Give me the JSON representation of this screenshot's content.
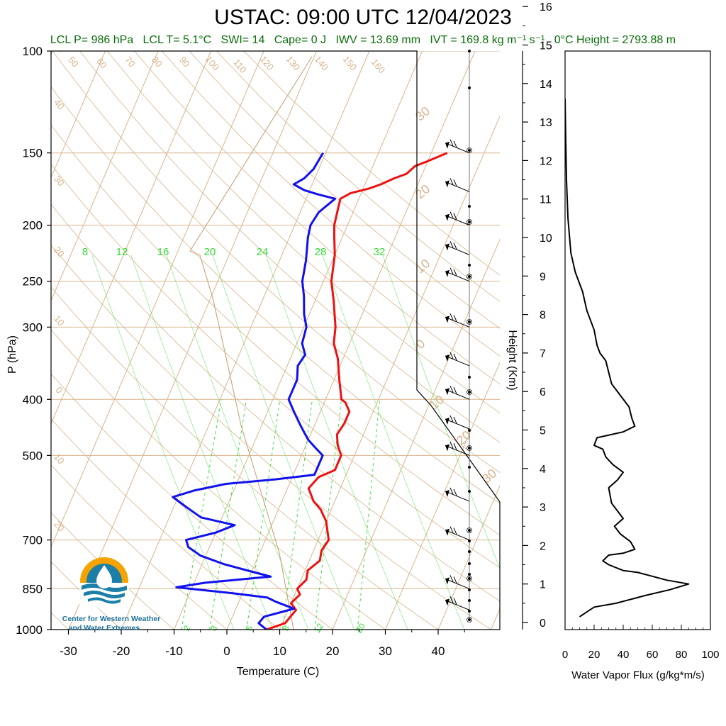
{
  "title": "USTAC: 09:00 UTC 12/04/2023",
  "stats": {
    "lcl_p": "LCL P= 986 hPa",
    "lcl_t": "LCL T= 5.1°C",
    "swi": "SWI= 14",
    "cape": "Cape= 0 J",
    "iwv": "IWV = 13.69 mm",
    "ivt": "IVT = 169.8 kg m⁻¹ s⁻¹",
    "zero_height": "0°C Height = 2793.88 m"
  },
  "logo": {
    "line1": "Center for Western Weather",
    "line2": "and Water Extremes"
  },
  "colors": {
    "temperature": "#ee1111",
    "dewpoint": "#1111ee",
    "isotherm_skewT": "#d8b48c",
    "mixing_ratio": "#33dd33",
    "flux": "#000000"
  },
  "chart_data": [
    {
      "type": "line",
      "subtype": "skew-T log-P diagram",
      "xlabel": "Temperature (C)",
      "ylabel": "P (hPa)",
      "xlim": [
        -35,
        50
      ],
      "ylim": [
        1000,
        100
      ],
      "xticks": [
        -30,
        -20,
        -10,
        0,
        10,
        20,
        30,
        40
      ],
      "yticks": [
        100,
        150,
        200,
        250,
        300,
        400,
        500,
        700,
        850,
        1000
      ],
      "y_scale": "log",
      "grid": true,
      "isotherm_labels": [
        "50",
        "60",
        "70",
        "80",
        "90",
        "100",
        "110",
        "120",
        "130",
        "140",
        "150",
        "160",
        "40",
        "30",
        "20",
        "10",
        "0",
        "10",
        "20"
      ],
      "mixing_ratio_labels_top": [
        "8",
        "12",
        "16",
        "20",
        "24",
        "28",
        "32"
      ],
      "mixing_ratio_labels_bottom": [
        "2",
        "3",
        "5",
        "8",
        "12",
        "20"
      ],
      "moist_adiabat_labels": [
        "30",
        "20",
        "10",
        "0",
        "10",
        "20",
        "30"
      ],
      "series": [
        {
          "kind": "temperature",
          "points": [
            [
              7.5,
              1000
            ],
            [
              10.5,
              975
            ],
            [
              11,
              950
            ],
            [
              11.5,
              925
            ],
            [
              10,
              900
            ],
            [
              11,
              870
            ],
            [
              10,
              850
            ],
            [
              11,
              820
            ],
            [
              10.5,
              790
            ],
            [
              12,
              760
            ],
            [
              11.5,
              730
            ],
            [
              12,
              700
            ],
            [
              10,
              650
            ],
            [
              8,
              620
            ],
            [
              6,
              600
            ],
            [
              4,
              570
            ],
            [
              5,
              545
            ],
            [
              7.5,
              530
            ],
            [
              7.5,
              500
            ],
            [
              6,
              480
            ],
            [
              5,
              460
            ],
            [
              5.5,
              440
            ],
            [
              5.5,
              420
            ],
            [
              4,
              405
            ],
            [
              3,
              400
            ],
            [
              1,
              370
            ],
            [
              -1,
              340
            ],
            [
              -3,
              320
            ],
            [
              -4,
              300
            ],
            [
              -6.5,
              270
            ],
            [
              -8.5,
              250
            ],
            [
              -10,
              225
            ],
            [
              -11.5,
              210
            ],
            [
              -12.5,
              200
            ],
            [
              -13,
              190
            ],
            [
              -13.5,
              180
            ],
            [
              -12,
              176
            ],
            [
              -9,
              173
            ],
            [
              -7,
              170
            ],
            [
              -5,
              166
            ],
            [
              -3,
              163
            ],
            [
              -2,
              158
            ],
            [
              0,
              155
            ],
            [
              3,
              150
            ]
          ]
        },
        {
          "kind": "dewpoint",
          "points": [
            [
              7.5,
              1000
            ],
            [
              5.5,
              975
            ],
            [
              6,
              950
            ],
            [
              11,
              920
            ],
            [
              7,
              895
            ],
            [
              5,
              880
            ],
            [
              -2,
              865
            ],
            [
              -13,
              845
            ],
            [
              -8,
              830
            ],
            [
              4,
              810
            ],
            [
              -1,
              790
            ],
            [
              -6,
              770
            ],
            [
              -11,
              745
            ],
            [
              -14,
              720
            ],
            [
              -15,
              700
            ],
            [
              -10,
              680
            ],
            [
              -7,
              660
            ],
            [
              -14,
              640
            ],
            [
              -17.5,
              615
            ],
            [
              -21,
              590
            ],
            [
              -17.5,
              575
            ],
            [
              -12,
              560
            ],
            [
              -3,
              550
            ],
            [
              4,
              540
            ],
            [
              4,
              510
            ],
            [
              4,
              500
            ],
            [
              2,
              485
            ],
            [
              0,
              470
            ],
            [
              -1.5,
              455
            ],
            [
              -3,
              440
            ],
            [
              -5,
              420
            ],
            [
              -7,
              400
            ],
            [
              -7,
              370
            ],
            [
              -8,
              350
            ],
            [
              -7.5,
              335
            ],
            [
              -9,
              320
            ],
            [
              -9.5,
              300
            ],
            [
              -11,
              285
            ],
            [
              -12.5,
              265
            ],
            [
              -14,
              250
            ],
            [
              -15,
              230
            ],
            [
              -16.5,
              210
            ],
            [
              -17,
              200
            ],
            [
              -16.5,
              190
            ],
            [
              -14.5,
              180
            ],
            [
              -18,
              177
            ],
            [
              -21,
              174
            ],
            [
              -23.5,
              170
            ],
            [
              -22,
              166
            ],
            [
              -21,
              160
            ],
            [
              -20.5,
              150
            ]
          ]
        }
      ]
    },
    {
      "type": "barbs",
      "subtype": "wind barbs",
      "pressure_levels": [
        925,
        850,
        700,
        600,
        500,
        450,
        400,
        350,
        300,
        250,
        225,
        200,
        175,
        150
      ]
    },
    {
      "type": "line",
      "subtype": "water vapor flux profile",
      "xlabel": "Water Vapor Flux (g/kg*m/s)",
      "ylabel": "Height (Km)",
      "xlim": [
        0,
        100
      ],
      "ylim": [
        0,
        16
      ],
      "xticks": [
        0,
        20,
        40,
        60,
        80,
        100
      ],
      "yticks": [
        0,
        1,
        2,
        3,
        4,
        5,
        6,
        7,
        8,
        9,
        10,
        11,
        12,
        13,
        14,
        15,
        16
      ],
      "series": [
        {
          "name": "",
          "points": [
            [
              10,
              0.15
            ],
            [
              14,
              0.25
            ],
            [
              20,
              0.4
            ],
            [
              35,
              0.5
            ],
            [
              55,
              0.7
            ],
            [
              72,
              0.85
            ],
            [
              85,
              1.0
            ],
            [
              70,
              1.1
            ],
            [
              60,
              1.2
            ],
            [
              50,
              1.3
            ],
            [
              40,
              1.35
            ],
            [
              30,
              1.5
            ],
            [
              26,
              1.6
            ],
            [
              30,
              1.75
            ],
            [
              40,
              1.8
            ],
            [
              48,
              1.9
            ],
            [
              45,
              2.1
            ],
            [
              38,
              2.3
            ],
            [
              34,
              2.5
            ],
            [
              40,
              2.7
            ],
            [
              36,
              2.9
            ],
            [
              32,
              3.1
            ],
            [
              30,
              3.5
            ],
            [
              36,
              3.7
            ],
            [
              40,
              3.9
            ],
            [
              33,
              4.1
            ],
            [
              28,
              4.3
            ],
            [
              26,
              4.5
            ],
            [
              20,
              4.6
            ],
            [
              22,
              4.8
            ],
            [
              40,
              4.95
            ],
            [
              48,
              5.1
            ],
            [
              46,
              5.3
            ],
            [
              44,
              5.6
            ],
            [
              38,
              5.9
            ],
            [
              32,
              6.2
            ],
            [
              30,
              6.5
            ],
            [
              28,
              6.8
            ],
            [
              24,
              7.0
            ],
            [
              22,
              7.2
            ],
            [
              20,
              7.6
            ],
            [
              15,
              8.1
            ],
            [
              12,
              8.6
            ],
            [
              7,
              9.1
            ],
            [
              4,
              9.6
            ],
            [
              2,
              10.5
            ],
            [
              1,
              11.5
            ],
            [
              0.5,
              12.5
            ],
            [
              0,
              13.6
            ]
          ]
        }
      ]
    }
  ]
}
